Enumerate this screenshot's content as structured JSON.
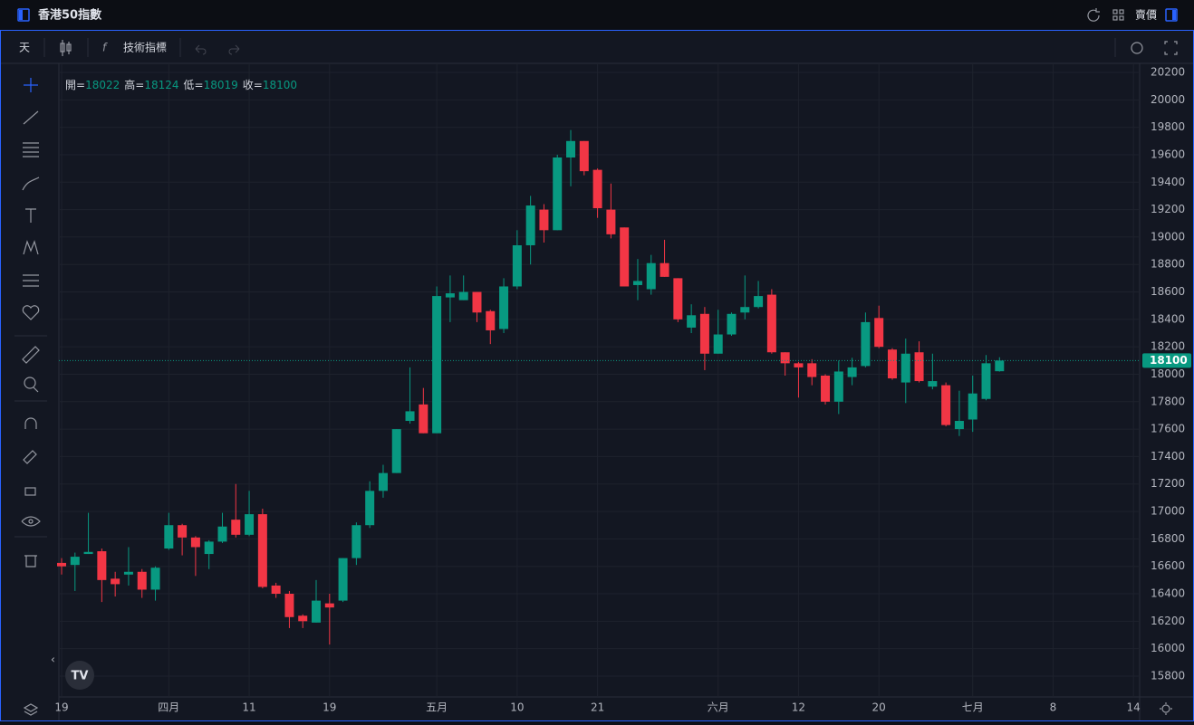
{
  "header": {
    "title": "香港50指數",
    "price_type": "賣價"
  },
  "toolbar": {
    "interval": "天",
    "indicators": "技術指標"
  },
  "chart_data": {
    "type": "candlestick",
    "categories": [
      "19",
      null,
      null,
      null,
      null,
      null,
      null,
      null,
      "四月",
      null,
      null,
      null,
      null,
      null,
      "11",
      null,
      null,
      null,
      null,
      null,
      "19",
      null,
      null,
      null,
      null,
      null,
      null,
      null,
      "五月",
      null,
      null,
      null,
      null,
      null,
      "10",
      null,
      null,
      null,
      null,
      null,
      "21",
      null,
      null,
      null,
      null,
      null,
      null,
      null,
      null,
      "六月",
      null,
      null,
      null,
      null,
      null,
      "12",
      null,
      null,
      null,
      null,
      null,
      "20",
      null,
      null,
      null,
      null,
      null,
      null,
      "七月",
      null,
      null,
      null,
      null,
      null,
      "8",
      null,
      null,
      null,
      null,
      null,
      "14"
    ],
    "open": [
      16625,
      16610,
      16690,
      16710,
      16510,
      16540,
      16560,
      16430,
      16730,
      16900,
      16810,
      16690,
      16780,
      16940,
      16830,
      16980,
      16460,
      16400,
      16240,
      16190,
      16330,
      16350,
      16660,
      16900,
      17150,
      17280,
      17660,
      17780,
      17570,
      18560,
      18540,
      18600,
      18460,
      18330,
      18640,
      18940,
      19200,
      19050,
      19580,
      19700,
      19490,
      19200,
      19070,
      18650,
      18620,
      18810,
      18700,
      18340,
      18440,
      18150,
      18290,
      18450,
      18490,
      18580,
      18160,
      18080,
      18080,
      17990,
      17800,
      17980,
      18060,
      18410,
      18180,
      17940,
      18160,
      17910,
      17920,
      17600,
      17670,
      17820,
      18022,
      null,
      null,
      null,
      null,
      null,
      null,
      null,
      null,
      null,
      null
    ],
    "high": [
      16660,
      16700,
      16990,
      16730,
      16560,
      16740,
      16580,
      16600,
      16990,
      16910,
      16820,
      16790,
      16990,
      17200,
      17150,
      17020,
      16480,
      16420,
      16250,
      16500,
      16400,
      16660,
      16920,
      17220,
      17340,
      17600,
      18050,
      17900,
      18640,
      18720,
      18720,
      18600,
      18470,
      18700,
      19050,
      19300,
      19240,
      19600,
      19780,
      19700,
      19500,
      19390,
      19070,
      18840,
      18870,
      18980,
      18700,
      18510,
      18490,
      18470,
      18450,
      18720,
      18680,
      18620,
      18160,
      18090,
      18110,
      18000,
      18100,
      18120,
      18450,
      18500,
      18190,
      18260,
      18240,
      18150,
      17940,
      17880,
      17990,
      18140,
      18124,
      null,
      null,
      null,
      null,
      null,
      null,
      null,
      null,
      null,
      null
    ],
    "low": [
      16540,
      16420,
      16690,
      16340,
      16380,
      16460,
      16370,
      16350,
      16720,
      16680,
      16530,
      16580,
      16770,
      16810,
      16820,
      16440,
      16370,
      16150,
      16150,
      16190,
      16030,
      16340,
      16610,
      16880,
      17100,
      17280,
      17640,
      17570,
      17570,
      18380,
      18540,
      18380,
      18220,
      18300,
      18620,
      18800,
      18960,
      19050,
      19370,
      19450,
      19140,
      18990,
      18640,
      18540,
      18580,
      18710,
      18380,
      18300,
      18030,
      18150,
      18280,
      18400,
      18480,
      18150,
      17990,
      17830,
      17920,
      17780,
      17710,
      17920,
      18050,
      18190,
      17960,
      17790,
      17940,
      17890,
      17620,
      17550,
      17580,
      17810,
      18019,
      null,
      null,
      null,
      null,
      null,
      null,
      null,
      null,
      null,
      null
    ],
    "close": [
      16600,
      16670,
      16705,
      16500,
      16470,
      16560,
      16430,
      16590,
      16900,
      16810,
      16740,
      16780,
      16890,
      16830,
      16980,
      16450,
      16400,
      16230,
      16200,
      16350,
      16300,
      16660,
      16900,
      17150,
      17280,
      17600,
      17730,
      17570,
      18570,
      18590,
      18600,
      18450,
      18320,
      18640,
      18940,
      19230,
      19050,
      19580,
      19700,
      19480,
      19210,
      19020,
      18640,
      18680,
      18810,
      18710,
      18400,
      18430,
      18150,
      18290,
      18440,
      18490,
      18570,
      18160,
      18080,
      18050,
      17980,
      17800,
      18020,
      18050,
      18380,
      18200,
      17970,
      18150,
      17950,
      17950,
      17630,
      17660,
      17860,
      18080,
      18100,
      null,
      null,
      null,
      null,
      null,
      null,
      null,
      null,
      null,
      null
    ],
    "up_color": "#089981",
    "down_color": "#f23645",
    "ylim": [
      15648,
      20266
    ],
    "yticks": [
      15800,
      16000,
      16200,
      16400,
      16600,
      16800,
      17000,
      17200,
      17400,
      17600,
      17800,
      18000,
      18200,
      18400,
      18600,
      18800,
      19000,
      19200,
      19400,
      19600,
      19800,
      20000,
      20200
    ],
    "grid": true,
    "legend_labels": [
      "開=",
      "高=",
      "低=",
      "收="
    ],
    "last_price_line": true
  }
}
